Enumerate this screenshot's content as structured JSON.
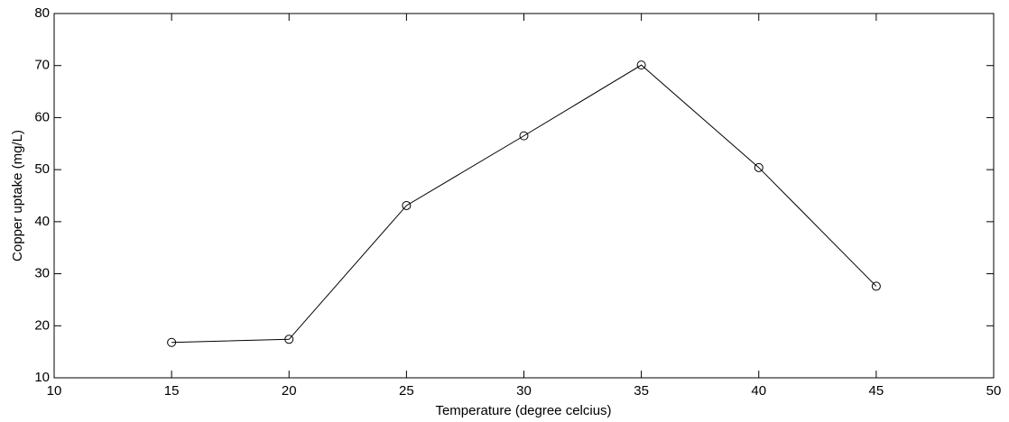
{
  "chart_data": {
    "type": "line",
    "x_label": "Temperature (degree celcius)",
    "y_label": "Copper uptake (mg/L)",
    "x": [
      15,
      20,
      25,
      30,
      35,
      40,
      45
    ],
    "values": [
      16.8,
      17.4,
      43.1,
      56.5,
      70.1,
      50.4,
      27.6
    ],
    "color": "#000000",
    "marker": "circle",
    "xlim": [
      10,
      50
    ],
    "xticks": [
      10,
      15,
      20,
      25,
      30,
      35,
      40,
      45,
      50
    ],
    "ylim": [
      10,
      80
    ],
    "yticks": [
      10,
      20,
      30,
      40,
      50,
      60,
      70,
      80
    ],
    "grid": false
  }
}
